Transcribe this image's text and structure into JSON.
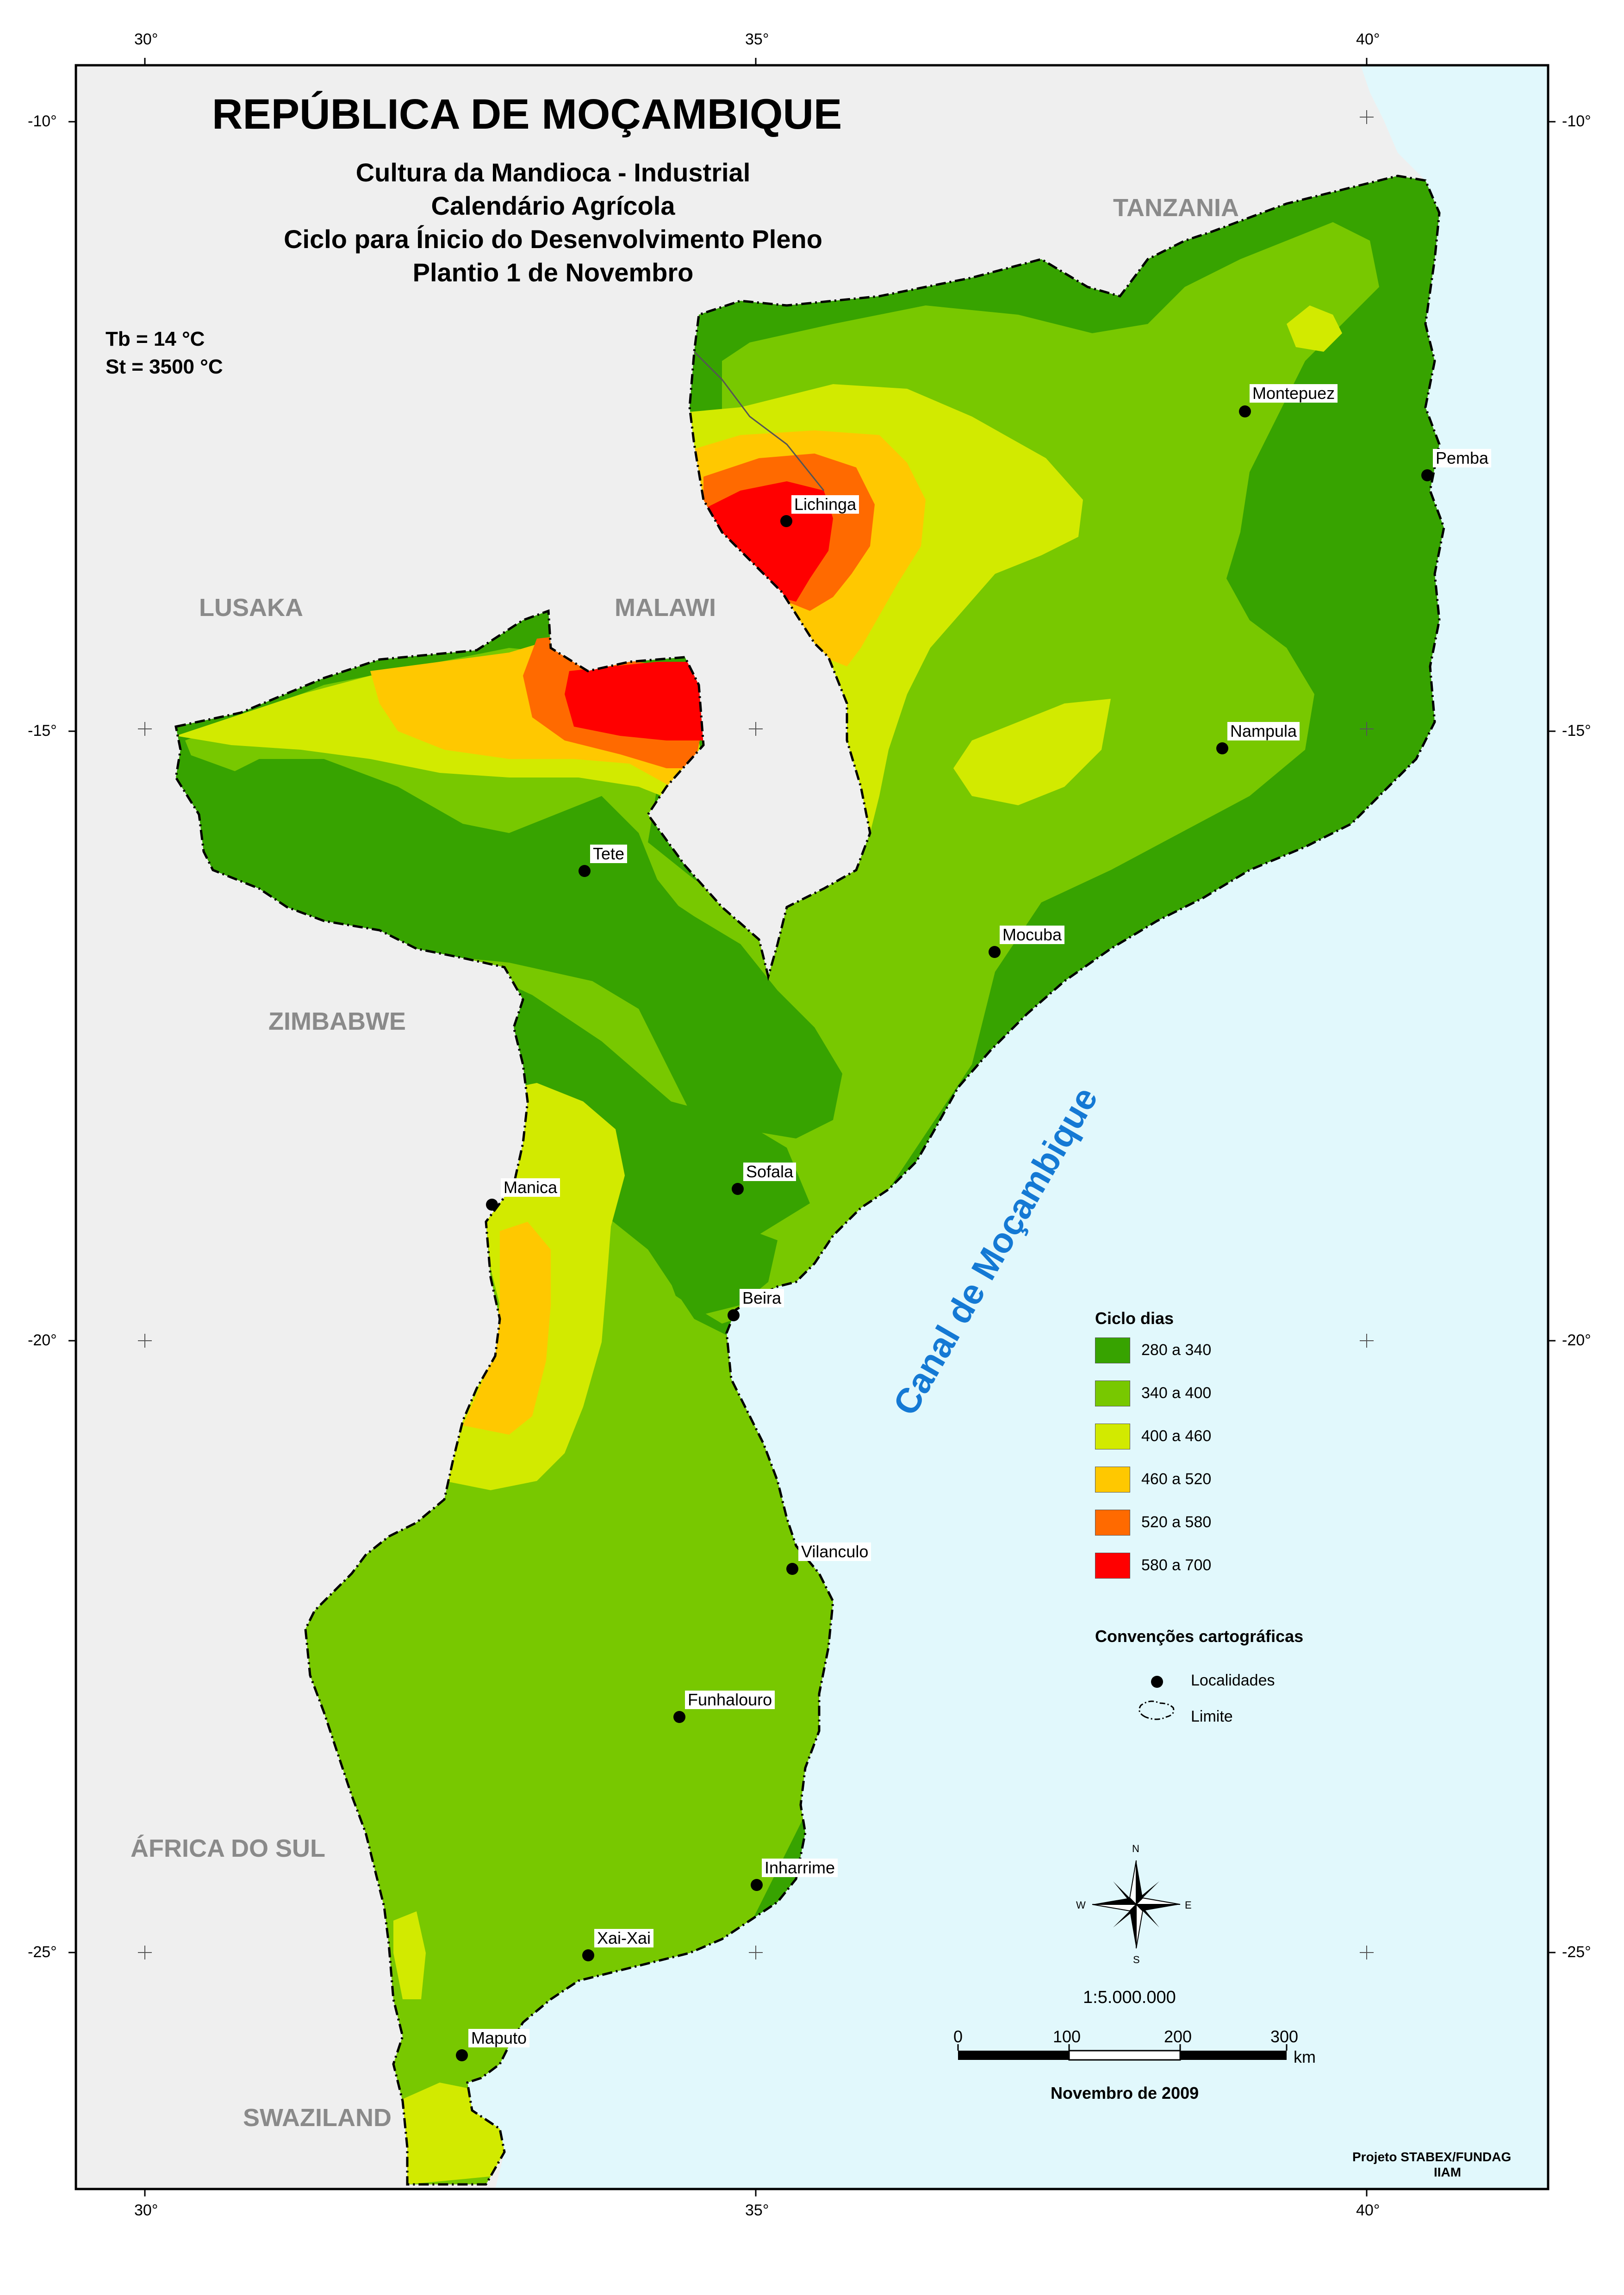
{
  "title": "REPÚBLICA DE MOÇAMBIQUE",
  "subtitle_lines": [
    "Cultura da Mandioca - Industrial",
    "Calendário Agrícola",
    "Ciclo para Ínicio do Desenvolvimento Pleno",
    "Plantio 1 de Novembro"
  ],
  "parameters": {
    "tb": "Tb = 14 °C",
    "st": "St =  3500 °C"
  },
  "graticule": {
    "top": [
      "30°",
      "35°",
      "40°"
    ],
    "bottom": [
      "30°",
      "35°",
      "40°"
    ],
    "left": [
      "-10°",
      "-15°",
      "-20°",
      "-25°"
    ],
    "right": [
      "-10°",
      "-15°",
      "-20°",
      "-25°"
    ]
  },
  "countries": [
    "TANZANIA",
    "LUSAKA",
    "MALAWI",
    "ZIMBABWE",
    "ÁFRICA DO SUL",
    "SWAZILAND"
  ],
  "sea_label": "Canal de Moçambique",
  "cities": [
    "Montepuez",
    "Pemba",
    "Lichinga",
    "Nampula",
    "Tete",
    "Mocuba",
    "Manica",
    "Sofala",
    "Beira",
    "Vilanculo",
    "Funhalouro",
    "Inharrime",
    "Xai-Xai",
    "Maputo"
  ],
  "legend": {
    "title": "Ciclo dias",
    "classes": [
      {
        "label": "280 a 340",
        "color": "#37a300"
      },
      {
        "label": "340 a 400",
        "color": "#78c800"
      },
      {
        "label": "400 a 460",
        "color": "#d2ea00"
      },
      {
        "label": "460 a 520",
        "color": "#ffc800"
      },
      {
        "label": "520 a 580",
        "color": "#ff6a00"
      },
      {
        "label": "580 a 700",
        "color": "#ff0000"
      }
    ]
  },
  "conventions": {
    "title": "Convenções cartográficas",
    "localidades": "Localidades",
    "limite": "Limite"
  },
  "compass": {
    "n": "N",
    "s": "S",
    "e": "E",
    "w": "W"
  },
  "scale": {
    "ratio": "1:5.000.000",
    "ticks": [
      "0",
      "100",
      "200",
      "300"
    ],
    "unit": "km"
  },
  "date": "Novembro de 2009",
  "credit_lines": [
    "Projeto STABEX/FUNDAG",
    "IIAM"
  ],
  "colors": {
    "land": "#efefef",
    "sea": "#e1f8fc",
    "frame": "#000000"
  }
}
